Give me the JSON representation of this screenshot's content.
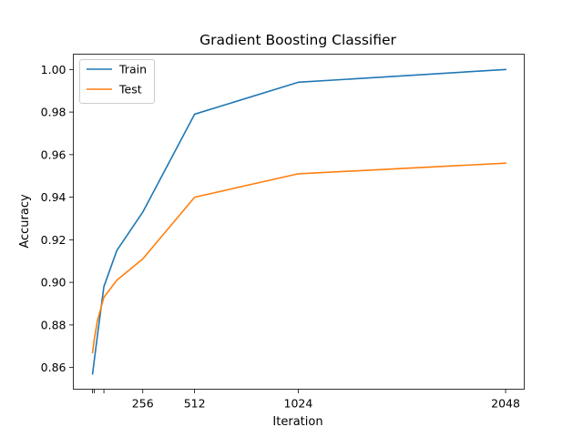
{
  "chart_data": {
    "type": "line",
    "title": "Gradient Boosting Classifier",
    "xlabel": "Iteration",
    "ylabel": "Accuracy",
    "x": [
      8,
      16,
      32,
      64,
      128,
      256,
      512,
      1024,
      2048
    ],
    "x_ticks": [
      8,
      16,
      64,
      256,
      512,
      1024,
      2048
    ],
    "x_tick_labels": [
      "",
      "",
      "",
      "256",
      "512",
      "1024",
      "2048"
    ],
    "xlim": [
      -87,
      2140
    ],
    "y_ticks": [
      0.86,
      0.88,
      0.9,
      0.92,
      0.94,
      0.96,
      0.98,
      1.0
    ],
    "y_tick_labels": [
      "0.86",
      "0.88",
      "0.90",
      "0.92",
      "0.94",
      "0.96",
      "0.98",
      "1.00"
    ],
    "ylim": [
      0.8498,
      1.0072
    ],
    "grid": false,
    "legend_position": "top-left",
    "series": [
      {
        "name": "Train",
        "color": "#1f77b4",
        "values": [
          0.857,
          0.863,
          0.875,
          0.898,
          0.915,
          0.933,
          0.979,
          0.994,
          1.0
        ]
      },
      {
        "name": "Test",
        "color": "#ff7f0e",
        "values": [
          0.867,
          0.873,
          0.882,
          0.893,
          0.901,
          0.911,
          0.94,
          0.951,
          0.956
        ]
      }
    ]
  }
}
